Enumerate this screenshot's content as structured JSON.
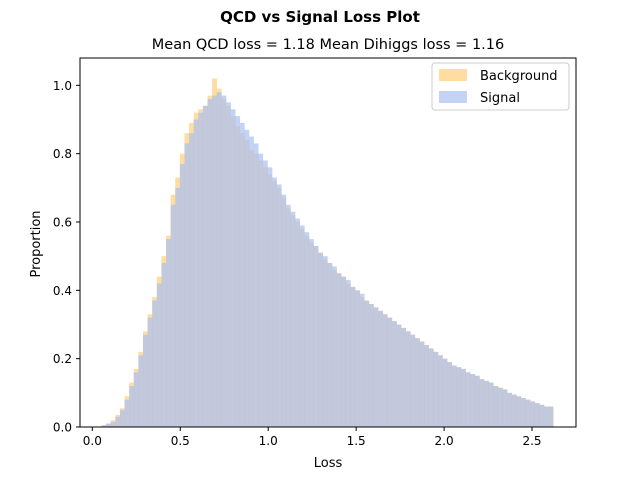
{
  "chart_data": {
    "type": "histogram",
    "title": "QCD vs Signal Loss Plot",
    "subtitle": "Mean QCD loss = 1.18 Mean Dihiggs loss = 1.16",
    "xlabel": "Loss",
    "ylabel": "Proportion",
    "xlim": [
      -0.07,
      2.75
    ],
    "ylim": [
      0,
      1.08
    ],
    "xticks": [
      0.0,
      0.5,
      1.0,
      1.5,
      2.0,
      2.5
    ],
    "xtick_labels": [
      "0.0",
      "0.5",
      "1.0",
      "1.5",
      "2.0",
      "2.5"
    ],
    "yticks": [
      0.0,
      0.2,
      0.4,
      0.6,
      0.8,
      1.0
    ],
    "ytick_labels": [
      "0.0",
      "0.2",
      "0.4",
      "0.6",
      "0.8",
      "1.0"
    ],
    "bins": {
      "start": 0.0,
      "width": 0.0262,
      "count": 100
    },
    "legend": {
      "position": "top-right"
    },
    "series": [
      {
        "name": "Background",
        "color": "#ffd78f",
        "values": [
          0.0,
          0.0,
          0.005,
          0.01,
          0.02,
          0.035,
          0.055,
          0.09,
          0.13,
          0.17,
          0.22,
          0.28,
          0.33,
          0.38,
          0.44,
          0.5,
          0.56,
          0.68,
          0.73,
          0.8,
          0.86,
          0.89,
          0.92,
          0.93,
          0.94,
          0.97,
          1.02,
          0.99,
          0.96,
          0.94,
          0.91,
          0.88,
          0.86,
          0.84,
          0.81,
          0.8,
          0.78,
          0.76,
          0.74,
          0.72,
          0.7,
          0.67,
          0.64,
          0.62,
          0.6,
          0.58,
          0.56,
          0.54,
          0.53,
          0.51,
          0.49,
          0.48,
          0.46,
          0.45,
          0.44,
          0.42,
          0.41,
          0.4,
          0.38,
          0.37,
          0.36,
          0.35,
          0.34,
          0.33,
          0.32,
          0.31,
          0.3,
          0.29,
          0.28,
          0.27,
          0.26,
          0.25,
          0.24,
          0.23,
          0.22,
          0.21,
          0.2,
          0.19,
          0.18,
          0.175,
          0.17,
          0.16,
          0.155,
          0.15,
          0.14,
          0.135,
          0.13,
          0.12,
          0.115,
          0.11,
          0.1,
          0.095,
          0.09,
          0.085,
          0.08,
          0.075,
          0.07,
          0.065,
          0.06,
          0.06
        ]
      },
      {
        "name": "Signal",
        "color": "#a9c1f2",
        "values": [
          0.0,
          0.0,
          0.005,
          0.01,
          0.015,
          0.03,
          0.05,
          0.08,
          0.12,
          0.16,
          0.21,
          0.27,
          0.32,
          0.37,
          0.42,
          0.48,
          0.55,
          0.65,
          0.7,
          0.77,
          0.83,
          0.86,
          0.9,
          0.92,
          0.94,
          0.96,
          0.97,
          0.98,
          0.97,
          0.95,
          0.93,
          0.91,
          0.89,
          0.87,
          0.85,
          0.83,
          0.8,
          0.78,
          0.76,
          0.73,
          0.71,
          0.68,
          0.65,
          0.63,
          0.61,
          0.59,
          0.57,
          0.55,
          0.53,
          0.51,
          0.5,
          0.48,
          0.47,
          0.45,
          0.44,
          0.43,
          0.41,
          0.4,
          0.39,
          0.37,
          0.36,
          0.35,
          0.34,
          0.33,
          0.32,
          0.31,
          0.3,
          0.29,
          0.28,
          0.27,
          0.26,
          0.25,
          0.24,
          0.23,
          0.22,
          0.21,
          0.2,
          0.19,
          0.18,
          0.175,
          0.17,
          0.16,
          0.155,
          0.15,
          0.14,
          0.135,
          0.13,
          0.12,
          0.115,
          0.11,
          0.1,
          0.095,
          0.09,
          0.085,
          0.08,
          0.075,
          0.07,
          0.065,
          0.06,
          0.06
        ]
      }
    ]
  }
}
